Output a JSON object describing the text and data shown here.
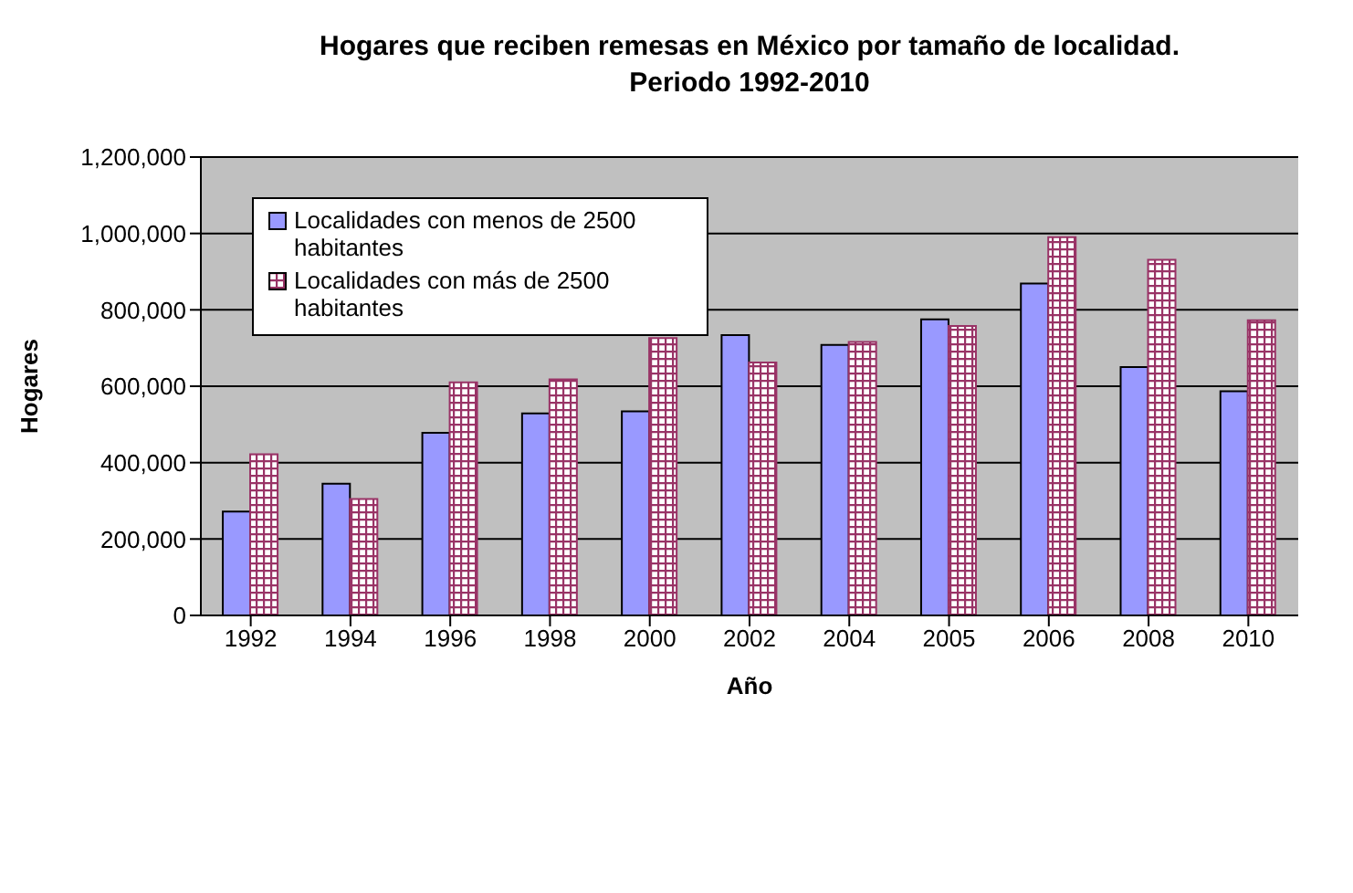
{
  "chart_data": {
    "type": "bar",
    "title": "Hogares que reciben remesas en México por tamaño de localidad.\nPeriodo 1992-2010",
    "xlabel": "Año",
    "ylabel": "Hogares",
    "categories": [
      "1992",
      "1994",
      "1996",
      "1998",
      "2000",
      "2002",
      "2004",
      "2005",
      "2006",
      "2008",
      "2010"
    ],
    "series": [
      {
        "name": "Localidades con menos de 2500 habitantes",
        "color": "#9999ff",
        "values": [
          272000,
          345000,
          478000,
          529000,
          534000,
          734000,
          708000,
          775000,
          869000,
          650000,
          587000
        ]
      },
      {
        "name": "Localidades con más de 2500 habitantes",
        "color": "#993366",
        "values": [
          422000,
          305000,
          610000,
          618000,
          726000,
          662000,
          716000,
          758000,
          990000,
          931000,
          773000
        ]
      }
    ],
    "ylim": [
      0,
      1200000
    ],
    "yticks": [
      {
        "value": 0,
        "label": "0"
      },
      {
        "value": 200000,
        "label": "200,000"
      },
      {
        "value": 400000,
        "label": "400,000"
      },
      {
        "value": 600000,
        "label": "600,000"
      },
      {
        "value": 800000,
        "label": "800,000"
      },
      {
        "value": 1000000,
        "label": "1,000,000"
      },
      {
        "value": 1200000,
        "label": "1,200,000"
      }
    ],
    "grid": "y",
    "legend": "top left"
  }
}
